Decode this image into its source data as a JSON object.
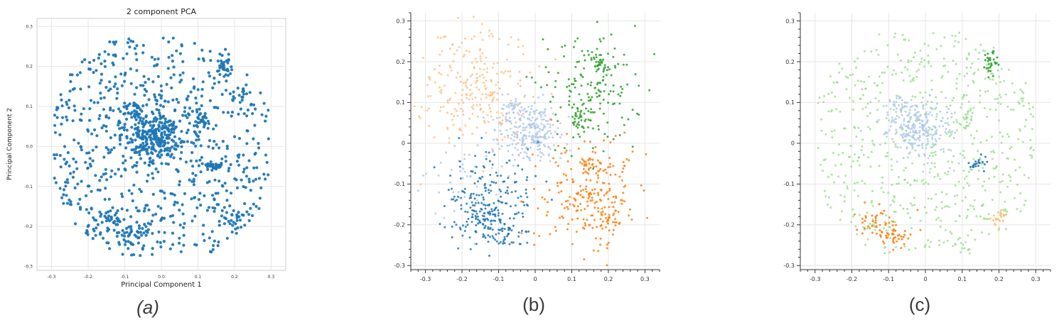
{
  "captions": [
    "(a)",
    "(b)",
    "(c)"
  ],
  "colors": {
    "blue": "#1f77b4",
    "light_blue": "#aec7e8",
    "orange": "#ff7f0e",
    "light_orange": "#ffbb78",
    "green": "#2ca02c",
    "light_green": "#98df8a",
    "grid": "#e6e6e6",
    "axis": "#333333"
  },
  "chart_data": [
    {
      "type": "scatter",
      "title": "2 component PCA",
      "xlabel": "Principal Component 1",
      "ylabel": "Principal Component 2",
      "xlim": [
        -0.34,
        0.34
      ],
      "ylim": [
        -0.31,
        0.32
      ],
      "xticks": [
        "-0.3",
        "-0.2",
        "-0.1",
        "0.0",
        "0.1",
        "0.2",
        "0.3"
      ],
      "yticks": [
        "-0.3",
        "-0.2",
        "-0.1",
        "0.0",
        "0.1",
        "0.2",
        "0.3"
      ],
      "grid": true,
      "series": [
        {
          "color": "blue",
          "alpha": 0.95,
          "clusters": [
            {
              "x": 0,
              "y": 0,
              "sx": 0.14,
              "sy": 0.13,
              "n": 700,
              "uniform": true
            },
            {
              "x": -0.02,
              "y": 0.03,
              "sx": 0.045,
              "sy": 0.035,
              "n": 260
            },
            {
              "x": -0.07,
              "y": 0.09,
              "sx": 0.015,
              "sy": 0.012,
              "n": 30
            },
            {
              "x": 0.175,
              "y": 0.195,
              "sx": 0.01,
              "sy": 0.015,
              "n": 28
            },
            {
              "x": 0.115,
              "y": 0.06,
              "sx": 0.01,
              "sy": 0.012,
              "n": 22
            },
            {
              "x": 0.145,
              "y": -0.05,
              "sx": 0.012,
              "sy": 0.008,
              "n": 20
            },
            {
              "x": -0.14,
              "y": -0.19,
              "sx": 0.03,
              "sy": 0.02,
              "n": 40
            },
            {
              "x": -0.08,
              "y": -0.225,
              "sx": 0.025,
              "sy": 0.015,
              "n": 35
            },
            {
              "x": 0.2,
              "y": -0.185,
              "sx": 0.015,
              "sy": 0.015,
              "n": 25
            },
            {
              "x": 0.22,
              "y": 0.13,
              "sx": 0.015,
              "sy": 0.015,
              "n": 15
            }
          ]
        }
      ]
    },
    {
      "type": "scatter",
      "xlim": [
        -0.34,
        0.34
      ],
      "ylim": [
        -0.31,
        0.32
      ],
      "xticks": [
        "-0.3",
        "-0.2",
        "-0.1",
        "0",
        "0.1",
        "0.2",
        "0.3"
      ],
      "yticks": [
        "-0.3",
        "-0.2",
        "-0.1",
        "0",
        "0.1",
        "0.2",
        "0.3"
      ],
      "grid": true,
      "series": [
        {
          "color": "light_orange",
          "alpha": 0.75,
          "clusters": [
            {
              "x": -0.17,
              "y": 0.14,
              "sx": 0.08,
              "sy": 0.08,
              "n": 260
            }
          ]
        },
        {
          "color": "light_blue",
          "alpha": 0.8,
          "clusters": [
            {
              "x": -0.02,
              "y": 0.03,
              "sx": 0.045,
              "sy": 0.035,
              "n": 260
            },
            {
              "x": -0.07,
              "y": 0.09,
              "sx": 0.015,
              "sy": 0.012,
              "n": 25
            },
            {
              "x": -0.2,
              "y": -0.1,
              "sx": 0.05,
              "sy": 0.05,
              "n": 40
            }
          ]
        },
        {
          "color": "green",
          "alpha": 0.85,
          "clusters": [
            {
              "x": 0.15,
              "y": 0.13,
              "sx": 0.07,
              "sy": 0.07,
              "n": 180
            },
            {
              "x": 0.175,
              "y": 0.195,
              "sx": 0.01,
              "sy": 0.015,
              "n": 28
            },
            {
              "x": 0.115,
              "y": 0.06,
              "sx": 0.01,
              "sy": 0.012,
              "n": 22
            }
          ]
        },
        {
          "color": "blue",
          "alpha": 0.85,
          "clusters": [
            {
              "x": -0.12,
              "y": -0.15,
              "sx": 0.065,
              "sy": 0.06,
              "n": 210
            },
            {
              "x": -0.14,
              "y": -0.19,
              "sx": 0.03,
              "sy": 0.02,
              "n": 40
            },
            {
              "x": -0.08,
              "y": -0.225,
              "sx": 0.025,
              "sy": 0.015,
              "n": 35
            }
          ]
        },
        {
          "color": "orange",
          "alpha": 0.85,
          "clusters": [
            {
              "x": 0.15,
              "y": -0.13,
              "sx": 0.07,
              "sy": 0.07,
              "n": 230
            },
            {
              "x": 0.145,
              "y": -0.05,
              "sx": 0.012,
              "sy": 0.008,
              "n": 20
            },
            {
              "x": 0.2,
              "y": -0.185,
              "sx": 0.015,
              "sy": 0.015,
              "n": 25
            }
          ]
        }
      ]
    },
    {
      "type": "scatter",
      "xlim": [
        -0.34,
        0.34
      ],
      "ylim": [
        -0.31,
        0.32
      ],
      "xticks": [
        "-0.3",
        "-0.2",
        "-0.1",
        "0",
        "0.1",
        "0.2",
        "0.3"
      ],
      "yticks": [
        "-0.3",
        "-0.2",
        "-0.1",
        "0",
        "0.1",
        "0.2",
        "0.3"
      ],
      "grid": true,
      "series": [
        {
          "color": "light_green",
          "alpha": 0.8,
          "clusters": [
            {
              "x": 0,
              "y": 0,
              "sx": 0.14,
              "sy": 0.13,
              "n": 650,
              "uniform": true
            },
            {
              "x": 0.115,
              "y": 0.06,
              "sx": 0.01,
              "sy": 0.012,
              "n": 20
            }
          ]
        },
        {
          "color": "light_blue",
          "alpha": 0.8,
          "clusters": [
            {
              "x": -0.02,
              "y": 0.03,
              "sx": 0.045,
              "sy": 0.035,
              "n": 240
            },
            {
              "x": -0.07,
              "y": 0.09,
              "sx": 0.015,
              "sy": 0.012,
              "n": 22
            }
          ]
        },
        {
          "color": "green",
          "alpha": 0.9,
          "clusters": [
            {
              "x": 0.175,
              "y": 0.195,
              "sx": 0.01,
              "sy": 0.015,
              "n": 30
            }
          ]
        },
        {
          "color": "blue",
          "alpha": 0.9,
          "clusters": [
            {
              "x": 0.145,
              "y": -0.05,
              "sx": 0.012,
              "sy": 0.008,
              "n": 22
            }
          ]
        },
        {
          "color": "orange",
          "alpha": 0.9,
          "clusters": [
            {
              "x": -0.14,
              "y": -0.19,
              "sx": 0.03,
              "sy": 0.02,
              "n": 40
            },
            {
              "x": -0.08,
              "y": -0.225,
              "sx": 0.025,
              "sy": 0.015,
              "n": 35
            }
          ]
        },
        {
          "color": "light_orange",
          "alpha": 0.9,
          "clusters": [
            {
              "x": 0.2,
              "y": -0.185,
              "sx": 0.015,
              "sy": 0.015,
              "n": 22
            }
          ]
        }
      ]
    }
  ]
}
